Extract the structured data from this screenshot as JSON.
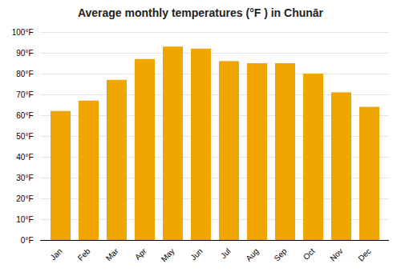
{
  "chart_data": {
    "type": "bar",
    "title": "Average monthly temperatures (°F ) in Chunār",
    "categories": [
      "Jan",
      "Feb",
      "Mar",
      "Apr",
      "May",
      "Jun",
      "Jul",
      "Aug",
      "Sep",
      "Oct",
      "Nov",
      "Dec"
    ],
    "values": [
      62,
      67,
      77,
      87,
      93,
      92,
      86,
      85,
      85,
      80,
      71,
      64
    ],
    "color": "#F0A500",
    "ylim": [
      0,
      100
    ],
    "yticks": [
      {
        "value": 0,
        "label": "0°F"
      },
      {
        "value": 10,
        "label": "10°F"
      },
      {
        "value": 20,
        "label": "20°F"
      },
      {
        "value": 30,
        "label": "30°F"
      },
      {
        "value": 40,
        "label": "40°F"
      },
      {
        "value": 50,
        "label": "50°F"
      },
      {
        "value": 60,
        "label": "60°F"
      },
      {
        "value": 70,
        "label": "70°F"
      },
      {
        "value": 80,
        "label": "80°F"
      },
      {
        "value": 90,
        "label": "90°F"
      },
      {
        "value": 100,
        "label": "100°F"
      }
    ],
    "grid": true
  }
}
